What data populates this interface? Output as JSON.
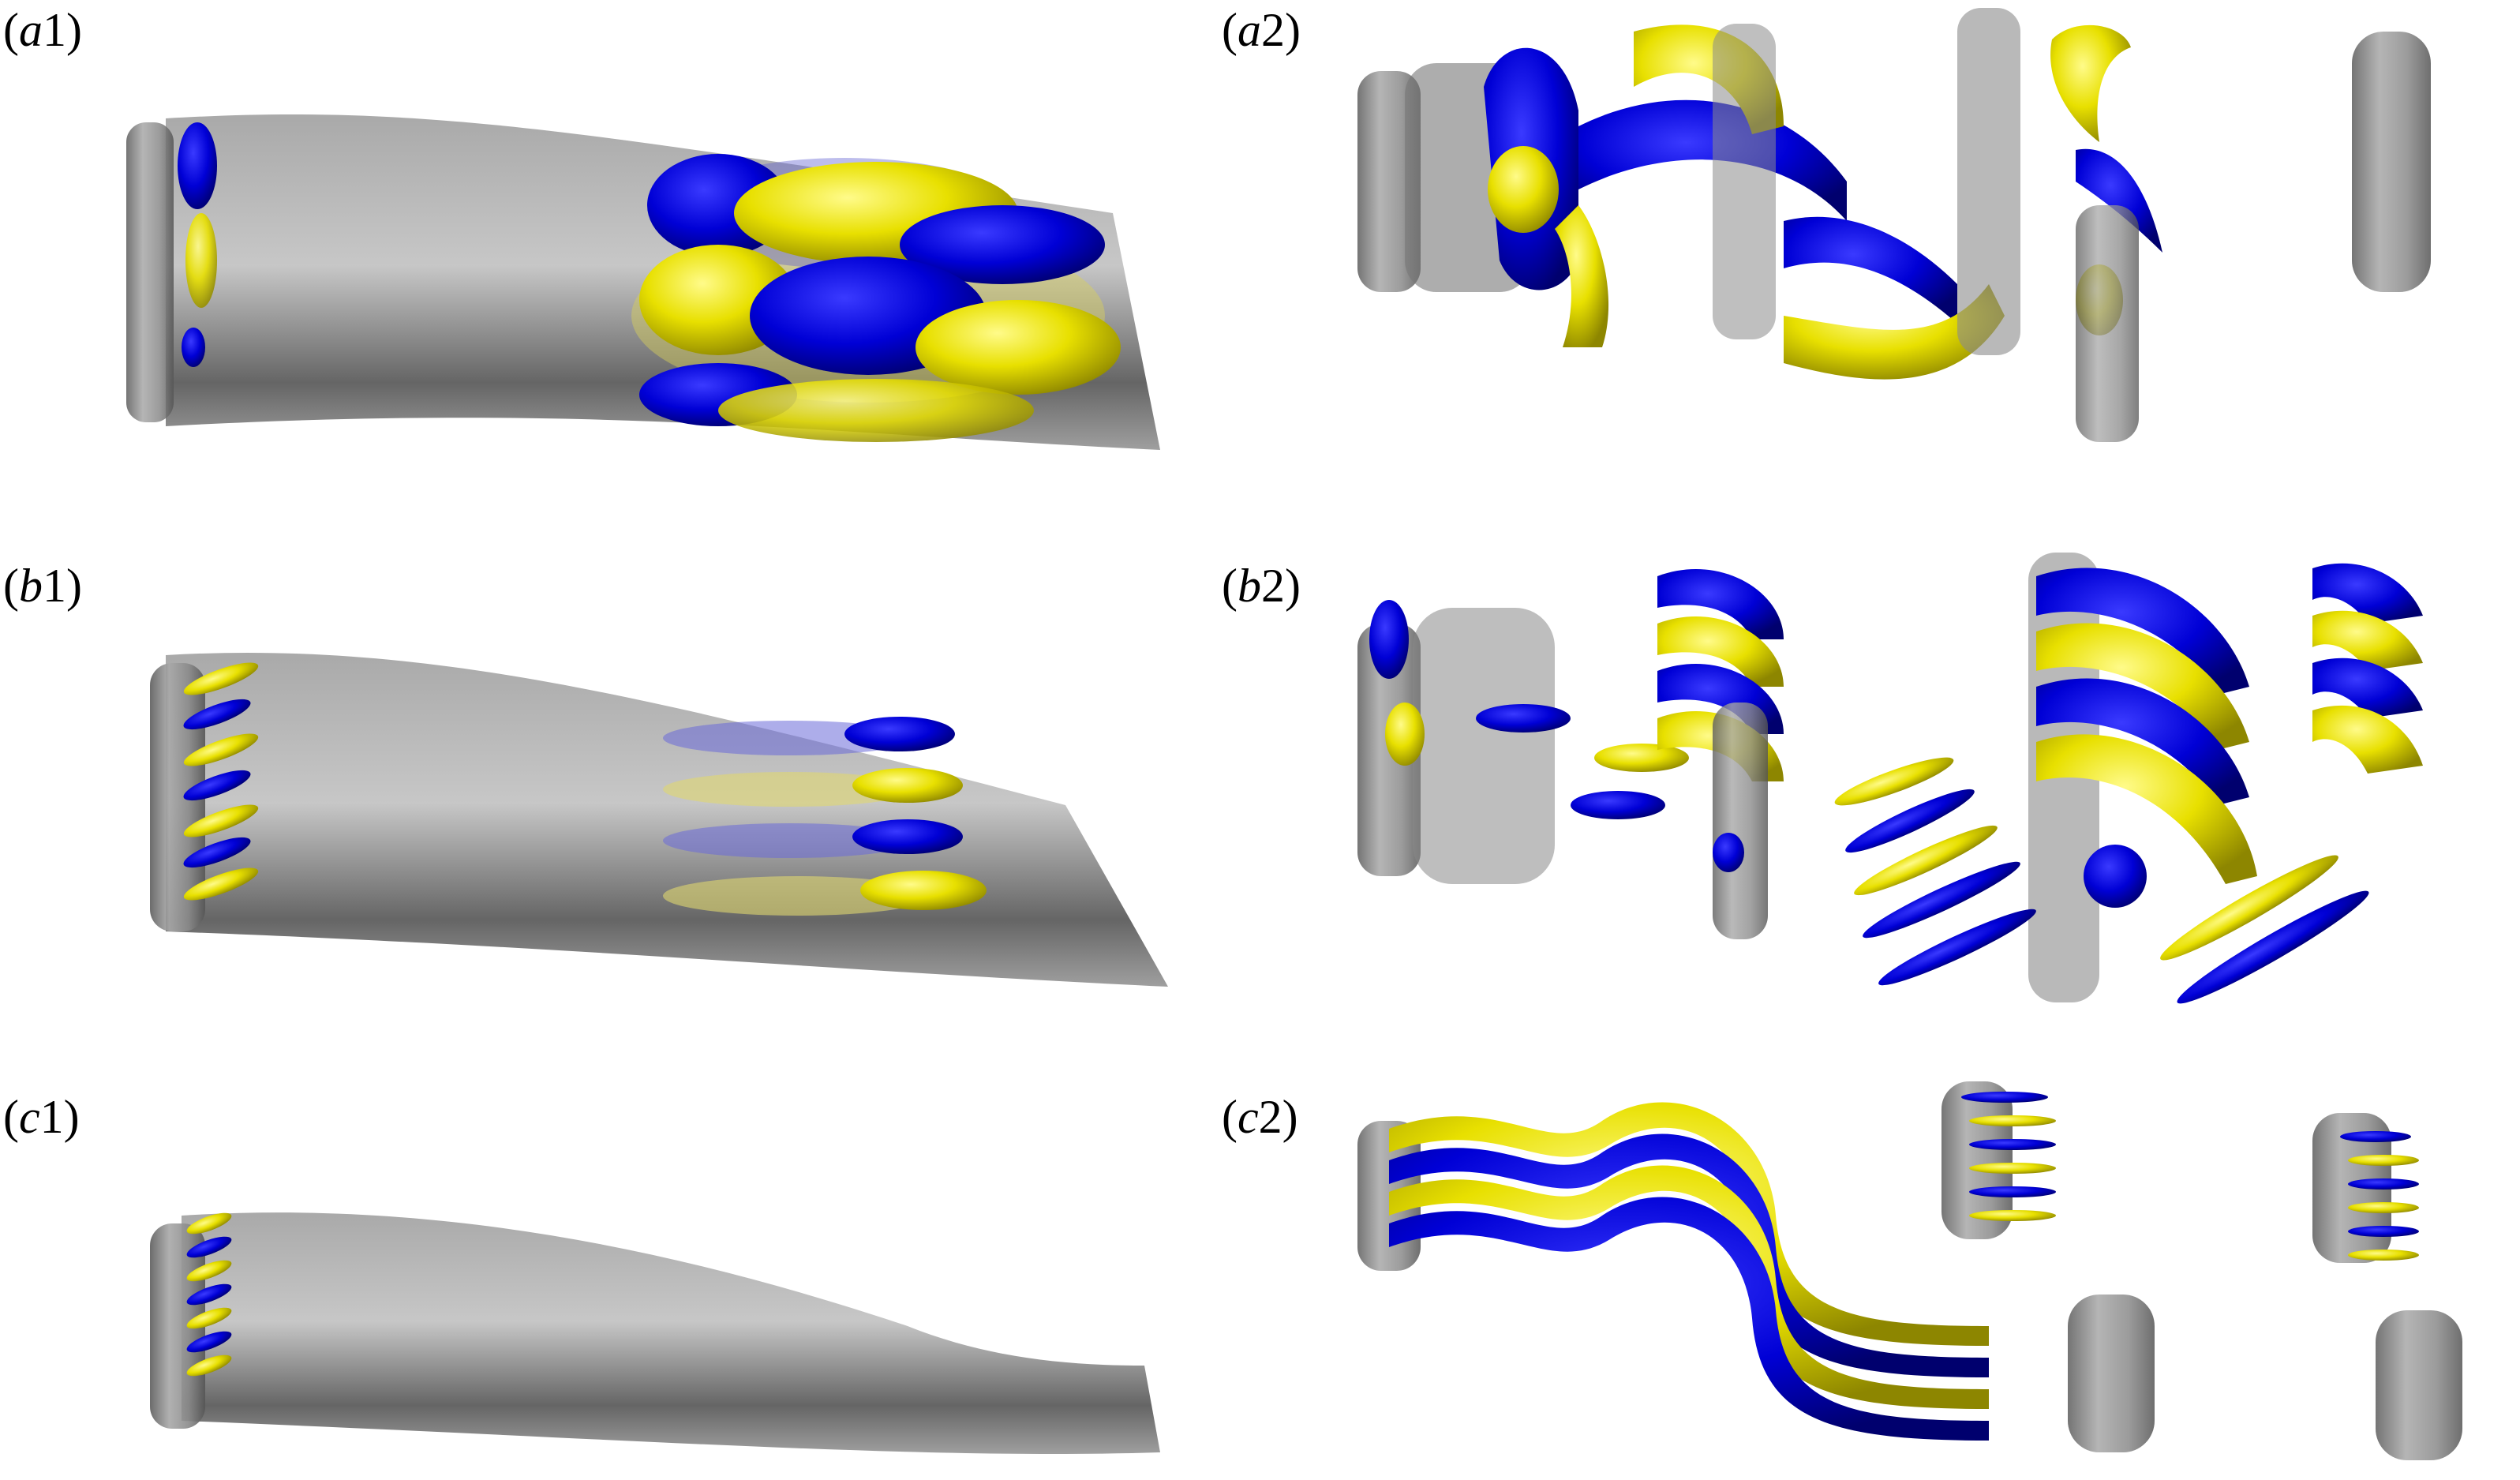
{
  "figure": {
    "panels": [
      {
        "id": "a1",
        "letter": "a",
        "index": "1"
      },
      {
        "id": "a2",
        "letter": "a",
        "index": "2"
      },
      {
        "id": "b1",
        "letter": "b",
        "index": "1"
      },
      {
        "id": "b2",
        "letter": "b",
        "index": "2"
      },
      {
        "id": "c1",
        "letter": "c",
        "index": "1"
      },
      {
        "id": "c2",
        "letter": "c",
        "index": "2"
      }
    ],
    "colors": {
      "positive": "#e3dc00",
      "negative": "#0000d0",
      "surface": "#8a8a8a",
      "surface_dark": "#3a3a3a",
      "background": "#ffffff"
    }
  }
}
